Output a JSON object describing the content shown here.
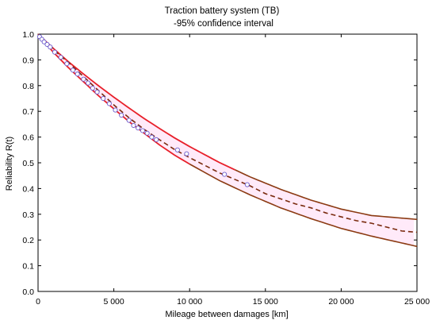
{
  "chart_data": {
    "type": "line",
    "title": "Traction battery system (TB)",
    "subtitle": "-95% confidence interval",
    "xlabel": "Mileage between damages [km]",
    "ylabel": "Reliability R(t)",
    "xlim": [
      0,
      25000
    ],
    "ylim": [
      0,
      1.0
    ],
    "x_ticks": [
      0,
      5000,
      10000,
      15000,
      20000,
      25000
    ],
    "x_tick_labels": [
      "0",
      "5 000",
      "10 000",
      "15 000",
      "20 000",
      "25 000"
    ],
    "y_ticks": [
      0,
      0.1,
      0.2,
      0.3,
      0.4,
      0.5,
      0.6,
      0.7,
      0.8,
      0.9,
      1.0
    ],
    "y_tick_labels": [
      "0.0",
      "0.1",
      "0.2",
      "0.3",
      "0.4",
      "0.5",
      "0.6",
      "0.7",
      "0.8",
      "0.9",
      "1.0"
    ],
    "grid": false,
    "colors": {
      "upper_bound": "#e8202a",
      "lower_bound": "#8b3a12",
      "estimate": "#7a2a0e",
      "band": "#ffd8f4",
      "points": "#6a5acd"
    },
    "series": [
      {
        "style": "dashed",
        "x": [
          0,
          200,
          400,
          800,
          1300,
          2000,
          3000,
          4000,
          5000,
          6000,
          7000,
          8000,
          9000,
          10000,
          11000,
          12000,
          13000,
          14000,
          15000,
          16000,
          17000,
          18000,
          19000,
          20000,
          21000,
          22000,
          23000,
          24000,
          25000
        ],
        "y": [
          1.0,
          0.985,
          0.975,
          0.955,
          0.925,
          0.89,
          0.835,
          0.78,
          0.725,
          0.675,
          0.63,
          0.59,
          0.552,
          0.52,
          0.49,
          0.46,
          0.435,
          0.41,
          0.38,
          0.36,
          0.34,
          0.325,
          0.305,
          0.29,
          0.275,
          0.265,
          0.25,
          0.235,
          0.23
        ]
      },
      {
        "style": "solid",
        "x": [
          0,
          1000,
          2000,
          3000,
          4000,
          5000,
          6000,
          7000,
          8000,
          9000,
          10000,
          12000,
          14000,
          16000,
          18000,
          20000,
          22000,
          25000
        ],
        "y": [
          1.0,
          0.945,
          0.893,
          0.845,
          0.799,
          0.755,
          0.713,
          0.672,
          0.634,
          0.597,
          0.563,
          0.5,
          0.445,
          0.397,
          0.355,
          0.32,
          0.295,
          0.28
        ]
      },
      {
        "style": "solid",
        "x": [
          0,
          1000,
          2000,
          3000,
          4000,
          5000,
          6000,
          7000,
          8000,
          9000,
          10000,
          12000,
          14000,
          16000,
          18000,
          20000,
          22000,
          25000
        ],
        "y": [
          1.0,
          0.93,
          0.87,
          0.815,
          0.76,
          0.71,
          0.66,
          0.615,
          0.57,
          0.53,
          0.495,
          0.43,
          0.375,
          0.325,
          0.283,
          0.245,
          0.215,
          0.175
        ]
      }
    ],
    "points": {
      "x": [
        100,
        250,
        400,
        600,
        800,
        1100,
        1500,
        1900,
        2300,
        2600,
        3000,
        3300,
        3600,
        3900,
        4300,
        4700,
        5100,
        5500,
        6000,
        6300,
        6600,
        6900,
        7200,
        7500,
        7800,
        9200,
        9800,
        12300,
        13800
      ],
      "y": [
        0.99,
        0.98,
        0.97,
        0.96,
        0.95,
        0.93,
        0.91,
        0.885,
        0.86,
        0.845,
        0.825,
        0.81,
        0.79,
        0.775,
        0.75,
        0.73,
        0.705,
        0.685,
        0.665,
        0.645,
        0.635,
        0.625,
        0.615,
        0.6,
        0.59,
        0.55,
        0.535,
        0.455,
        0.415
      ]
    }
  }
}
